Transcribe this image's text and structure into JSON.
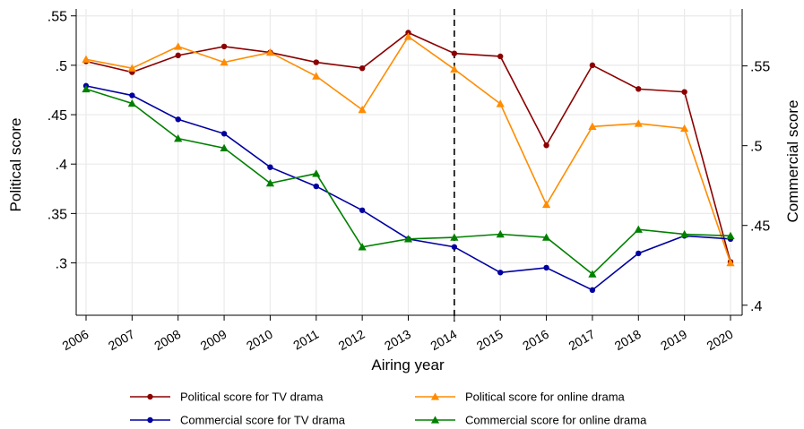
{
  "chart_data": {
    "type": "line",
    "title": "",
    "xlabel": "Airing year",
    "ylabel_left": "Political score",
    "ylabel_right": "Commercial score",
    "x": [
      2006,
      2007,
      2008,
      2009,
      2010,
      2011,
      2012,
      2013,
      2014,
      2015,
      2016,
      2017,
      2018,
      2019,
      2020
    ],
    "x_tick_labels": [
      "2006",
      "2007",
      "2008",
      "2009",
      "2010",
      "2011",
      "2012",
      "2013",
      "2014",
      "2015",
      "2016",
      "2017",
      "2018",
      "2019",
      "2020"
    ],
    "ylim_left": [
      0.247,
      0.557
    ],
    "yticks_left": [
      0.3,
      0.35,
      0.4,
      0.45,
      0.5,
      0.55
    ],
    "ytick_labels_left": [
      ".3",
      ".35",
      ".4",
      ".45",
      ".5",
      ".55"
    ],
    "ylim_right": [
      0.3937,
      0.5857
    ],
    "yticks_right": [
      0.4,
      0.45,
      0.5,
      0.55
    ],
    "ytick_labels_right": [
      ".4",
      ".45",
      ".5",
      ".55"
    ],
    "reference_line_x": 2014,
    "grid": true,
    "legend_position": "bottom",
    "series": [
      {
        "name": "Political score for TV drama",
        "axis": "left",
        "color": "#8B0000",
        "marker": "circle",
        "values": [
          0.504,
          0.493,
          0.51,
          0.519,
          0.513,
          0.503,
          0.497,
          0.533,
          0.512,
          0.509,
          0.419,
          0.5,
          0.476,
          0.473,
          0.301
        ]
      },
      {
        "name": "Political score for online drama",
        "axis": "left",
        "color": "#FF8C00",
        "marker": "triangle",
        "values": [
          0.506,
          0.497,
          0.519,
          0.503,
          0.513,
          0.489,
          0.455,
          0.529,
          0.496,
          0.461,
          0.359,
          0.438,
          0.441,
          0.436,
          0.3
        ]
      },
      {
        "name": "Commercial score for TV drama",
        "axis": "right",
        "color": "#0000A0",
        "marker": "circle",
        "values": [
          0.5375,
          0.5315,
          0.5165,
          0.5075,
          0.4865,
          0.4745,
          0.4595,
          0.4415,
          0.4365,
          0.4205,
          0.4235,
          0.4095,
          0.4325,
          0.4435,
          0.4415
        ]
      },
      {
        "name": "Commercial score for online drama",
        "axis": "right",
        "color": "#008000",
        "marker": "triangle",
        "values": [
          0.5355,
          0.5265,
          0.5045,
          0.4985,
          0.4765,
          0.4825,
          0.4365,
          0.4415,
          0.4425,
          0.4445,
          0.4425,
          0.4195,
          0.4475,
          0.4445,
          0.4435
        ]
      }
    ]
  }
}
